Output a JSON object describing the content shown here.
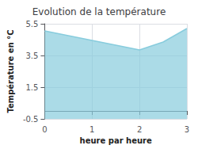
{
  "chart_data": {
    "type": "area",
    "title": "Evolution de la température",
    "xlabel": "heure par heure",
    "ylabel": "Température en °C",
    "x": [
      0,
      0.5,
      1,
      1.5,
      2,
      2.5,
      3
    ],
    "values": [
      5.05,
      4.75,
      4.45,
      4.15,
      3.85,
      4.35,
      5.2
    ],
    "color": "#88ccdd",
    "xlim": [
      0,
      3.0
    ],
    "ylim": [
      -0.5,
      5.5
    ],
    "xticks": [
      0,
      1,
      2,
      3
    ],
    "yticks": [
      -0.5,
      1.5,
      3.5,
      5.5
    ],
    "grid": true
  }
}
